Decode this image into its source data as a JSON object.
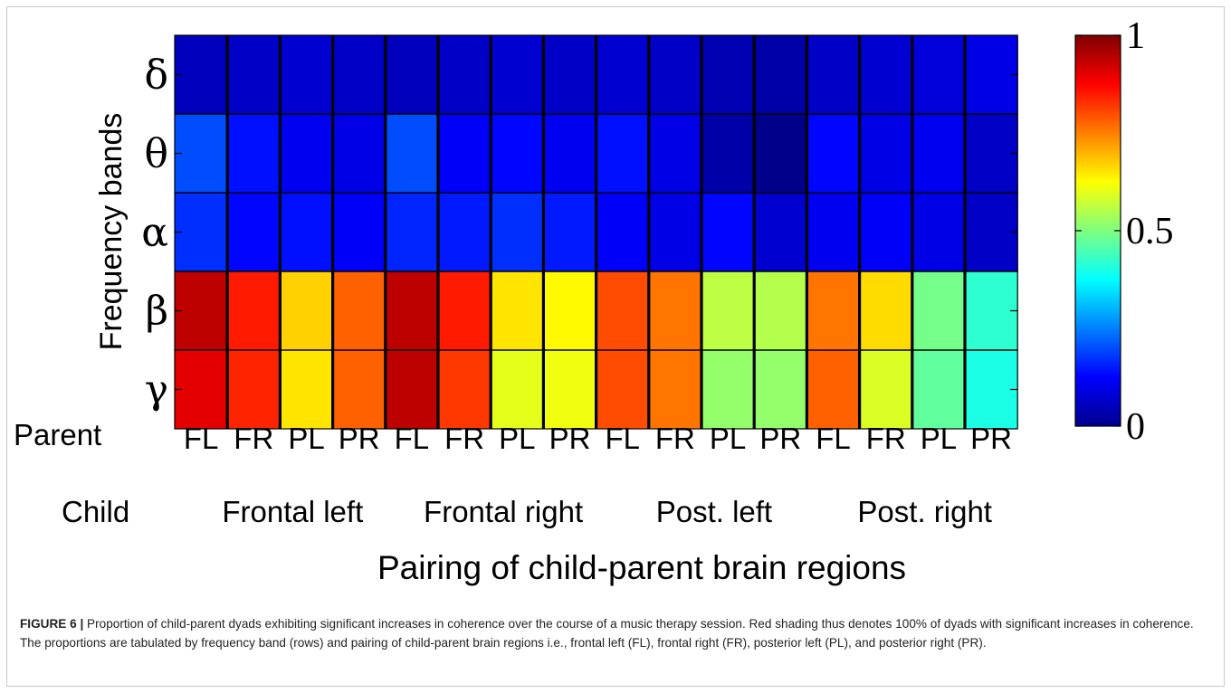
{
  "chart_data": {
    "type": "heatmap",
    "ylabel": "Frequency bands",
    "xlabel": "Pairing of child-parent brain regions",
    "rows": [
      "δ",
      "θ",
      "α",
      "β",
      "γ"
    ],
    "parent_row_label": "Parent",
    "child_row_label": "Child",
    "parent_labels": [
      "FL",
      "FR",
      "PL",
      "PR",
      "FL",
      "FR",
      "PL",
      "PR",
      "FL",
      "FR",
      "PL",
      "PR",
      "FL",
      "FR",
      "PL",
      "PR"
    ],
    "child_groups": [
      "Frontal left",
      "Frontal right",
      "Post. left",
      "Post. right"
    ],
    "values": [
      [
        0.06,
        0.07,
        0.08,
        0.07,
        0.06,
        0.07,
        0.08,
        0.07,
        0.08,
        0.07,
        0.05,
        0.04,
        0.07,
        0.08,
        0.09,
        0.1
      ],
      [
        0.2,
        0.14,
        0.11,
        0.1,
        0.2,
        0.12,
        0.13,
        0.11,
        0.14,
        0.1,
        0.04,
        0.01,
        0.13,
        0.1,
        0.11,
        0.07
      ],
      [
        0.17,
        0.13,
        0.14,
        0.12,
        0.16,
        0.15,
        0.17,
        0.15,
        0.12,
        0.1,
        0.13,
        0.08,
        0.11,
        0.12,
        0.1,
        0.07
      ],
      [
        0.94,
        0.85,
        0.67,
        0.78,
        0.94,
        0.85,
        0.65,
        0.63,
        0.8,
        0.76,
        0.56,
        0.55,
        0.76,
        0.66,
        0.49,
        0.42
      ],
      [
        0.9,
        0.84,
        0.65,
        0.78,
        0.94,
        0.82,
        0.6,
        0.61,
        0.8,
        0.76,
        0.52,
        0.52,
        0.78,
        0.59,
        0.47,
        0.4
      ]
    ],
    "zlim": [
      0,
      1
    ],
    "colorbar_ticks": [
      "0",
      "0.5",
      "1"
    ],
    "colormap": "jet"
  },
  "caption": {
    "lead": "FIGURE 6 |",
    "text": " Proportion of child-parent dyads exhibiting significant increases in coherence over the course of a music therapy session. Red shading thus denotes 100% of dyads with significant increases in coherence. The proportions are tabulated by frequency band (rows) and pairing of child-parent brain regions i.e., frontal left (FL), frontal right (FR), posterior left (PL), and posterior right (PR)."
  }
}
